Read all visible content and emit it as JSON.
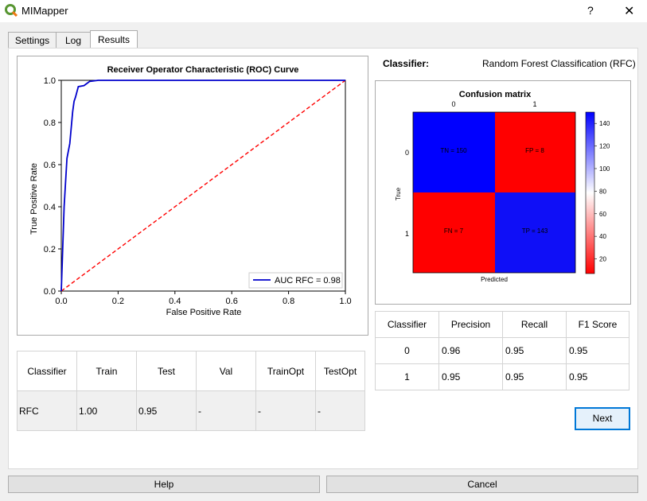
{
  "window": {
    "title": "MIMapper",
    "help_glyph": "?",
    "close_glyph": "✕"
  },
  "tabs": [
    {
      "label": "Settings"
    },
    {
      "label": "Log"
    },
    {
      "label": "Results"
    }
  ],
  "classifier": {
    "label": "Classifier:",
    "value": "Random Forest Classification (RFC)"
  },
  "roc_chart": {
    "title": "Receiver Operator Characteristic (ROC) Curve",
    "xlabel": "False Positive Rate",
    "ylabel": "True Positive Rate",
    "xticks": [
      "0.0",
      "0.2",
      "0.4",
      "0.6",
      "0.8",
      "1.0"
    ],
    "yticks": [
      "0.0",
      "0.2",
      "0.4",
      "0.6",
      "0.8",
      "1.0"
    ],
    "legend": "AUC RFC = 0.98"
  },
  "confusion_chart": {
    "title": "Confusion matrix",
    "xticks": [
      "0",
      "1"
    ],
    "yticks": [
      "0",
      "1"
    ],
    "xlabel": "Predicted",
    "ylabel": "True",
    "cells": [
      "TN = 150",
      "FP = 8",
      "FN = 7",
      "TP = 143"
    ],
    "colorbar_ticks": [
      "140",
      "120",
      "100",
      "80",
      "60",
      "40",
      "20"
    ]
  },
  "chart_data": [
    {
      "type": "line",
      "title": "Receiver Operator Characteristic (ROC) Curve",
      "xlabel": "False Positive Rate",
      "ylabel": "True Positive Rate",
      "xlim": [
        0,
        1
      ],
      "ylim": [
        0,
        1
      ],
      "grid": false,
      "legend_position": "bottom-right",
      "series": [
        {
          "name": "AUC RFC = 0.98",
          "color": "#0000cc",
          "x": [
            0.0,
            0.01,
            0.02,
            0.03,
            0.04,
            0.045,
            0.05,
            0.06,
            0.08,
            0.09,
            0.1,
            0.13,
            0.2,
            0.4,
            1.0
          ],
          "y": [
            0.0,
            0.4,
            0.63,
            0.7,
            0.85,
            0.9,
            0.92,
            0.97,
            0.975,
            0.985,
            0.995,
            1.0,
            1.0,
            1.0,
            1.0
          ]
        },
        {
          "name": "",
          "color": "#ff0000",
          "style": "dashed",
          "x": [
            0,
            1
          ],
          "y": [
            0,
            1
          ]
        }
      ]
    },
    {
      "type": "heatmap",
      "title": "Confusion matrix",
      "xlabel": "Predicted",
      "ylabel": "True",
      "categories_x": [
        "0",
        "1"
      ],
      "categories_y": [
        "0",
        "1"
      ],
      "values": [
        [
          150,
          8
        ],
        [
          7,
          143
        ]
      ],
      "labels": [
        [
          "TN = 150",
          "FP = 8"
        ],
        [
          "FN = 7",
          "TP = 143"
        ]
      ],
      "colormap": "bwr_r",
      "colorbar_range": [
        7,
        150
      ]
    }
  ],
  "metrics_table": {
    "headers": [
      "Classifier",
      "Precision",
      "Recall",
      "F1 Score"
    ],
    "rows": [
      [
        "0",
        "0.96",
        "0.95",
        "0.95"
      ],
      [
        "1",
        "0.95",
        "0.95",
        "0.95"
      ]
    ]
  },
  "scores_table": {
    "headers": [
      "Classifier",
      "Train",
      "Test",
      "Val",
      "TrainOpt",
      "TestOpt"
    ],
    "rows": [
      [
        "RFC",
        "1.00",
        "0.95",
        "-",
        "-",
        "-"
      ]
    ]
  },
  "buttons": {
    "next": "Next",
    "help": "Help",
    "cancel": "Cancel"
  },
  "colors": {
    "accent": "#0078d7",
    "app_icon": "#589632",
    "roc_curve": "#0000cc",
    "diagonal": "#ff0000",
    "cm_blue": "#0000ff",
    "cm_red": "#ff0000"
  }
}
